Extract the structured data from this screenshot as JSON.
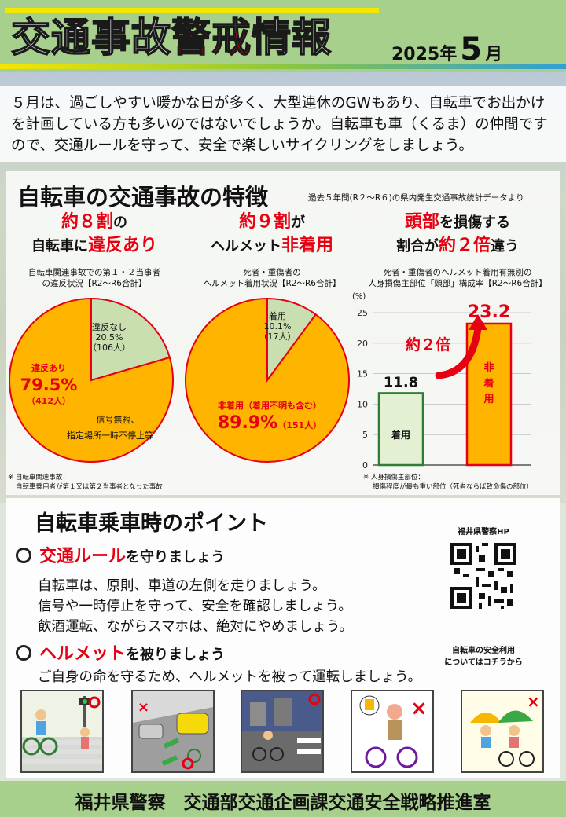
{
  "header": {
    "title_pre": "交通事故",
    "title_red": "警戒",
    "title_post": "情報",
    "year": "2025年",
    "month": "5",
    "month_unit": "月"
  },
  "intro": {
    "lines": [
      "５月は、過ごしやすい暖かな日が多く、大型連休のGWもあり、自転車でお出かけ",
      "を計画している方も多いのではないでしょうか。自転車も車（くるま）の仲間です",
      "ので、交通ルールを守って、安全で楽しいサイクリングをしましょう。"
    ]
  },
  "features": {
    "title": "自転車の交通事故の特徴",
    "source": "過去５年間(R２～R６)の県内発生交通事故統計データより",
    "col1": {
      "h1_red": "約８割",
      "h1_rest": "の",
      "h2_pre": "自転車に",
      "h2_red": "違反あり",
      "caption1": "自転車関連事故での第１・２当事者",
      "caption2": "の違反状況【R2～R6合計】",
      "slice_a_label": "違反なし",
      "slice_a_pct": "20.5%",
      "slice_a_count": "（106人）",
      "slice_b_label": "違反あり",
      "slice_b_pct": "79.5%",
      "slice_b_count": "（412人）",
      "detail1": "信号無視、",
      "detail2": "指定場所一時不停止等"
    },
    "col2": {
      "h1_red": "約９割",
      "h1_rest": "が",
      "h2_pre": "ヘルメット",
      "h2_red": "非着用",
      "caption1": "死者・重傷者の",
      "caption2": "ヘルメット着用状況【R2～R6合計】",
      "slice_a_label": "着用",
      "slice_a_pct": "10.1%",
      "slice_a_count": "（17人）",
      "slice_b_label": "非着用（着用不明も含む）",
      "slice_b_pct": "89.9%",
      "slice_b_count": "（151人）"
    },
    "col3": {
      "h1_red": "頭部",
      "h1_rest": "を損傷する",
      "h2_pre": "割合が",
      "h2_red": "約２倍",
      "h2_post": "違う",
      "caption1": "死者・重傷者のヘルメット着用有無別の",
      "caption2": "人身損傷主部位「頭部」構成率【R2～R6合計】",
      "unit": "(%)",
      "arrow_label": "約２倍"
    },
    "note1a": "※ 自転車関連事故：",
    "note1b": "自転車乗用者が第１又は第２当事者となった事故",
    "note2a": "※ 人身損傷主部位：",
    "note2b": "損傷程度が最も重い部位（死者ならば致命傷の部位）"
  },
  "chart_data": [
    {
      "type": "pie",
      "title": "自転車関連事故での第１・２当事者の違反状況【R2～R6合計】",
      "slices": [
        {
          "label": "違反なし",
          "value": 20.5,
          "count": 106
        },
        {
          "label": "違反あり",
          "value": 79.5,
          "count": 412
        }
      ]
    },
    {
      "type": "pie",
      "title": "死者・重傷者のヘルメット着用状況【R2～R6合計】",
      "slices": [
        {
          "label": "着用",
          "value": 10.1,
          "count": 17
        },
        {
          "label": "非着用（着用不明も含む）",
          "value": 89.9,
          "count": 151
        }
      ]
    },
    {
      "type": "bar",
      "title": "死者・重傷者のヘルメット着用有無別の人身損傷主部位「頭部」構成率【R2～R6合計】",
      "categories": [
        "着用",
        "非着用"
      ],
      "values": [
        11.8,
        23.2
      ],
      "ylabel": "(%)",
      "ylim": [
        0,
        25
      ],
      "yticks": [
        0,
        5,
        10,
        15,
        20,
        25
      ]
    }
  ],
  "colors": {
    "green": "#a8d08d",
    "slice_light": "#c9dfaf",
    "slice_orange": "#ffb400",
    "red": "#e60012"
  },
  "points": {
    "title": "自転車乗車時のポイント",
    "b1_red": "交通ルール",
    "b1_rest": "を守りましょう",
    "b1_lines": [
      "自転車は、原則、車道の左側を走りましょう。",
      "信号や一時停止を守って、安全を確認しましょう。",
      "飲酒運転、ながらスマホは、絶対にやめましょう。"
    ],
    "b2_red": "ヘルメット",
    "b2_rest": "を被りましょう",
    "b2_line": "ご自身の命を守るため、ヘルメットを被って運転しましょう。",
    "qr_title": "福井県警察HP",
    "qr_cap1": "自転車の安全利用",
    "qr_cap2": "についてはコチラから"
  },
  "footer": {
    "text": "福井県警察　交通部交通企画課交通安全戦略推進室"
  }
}
